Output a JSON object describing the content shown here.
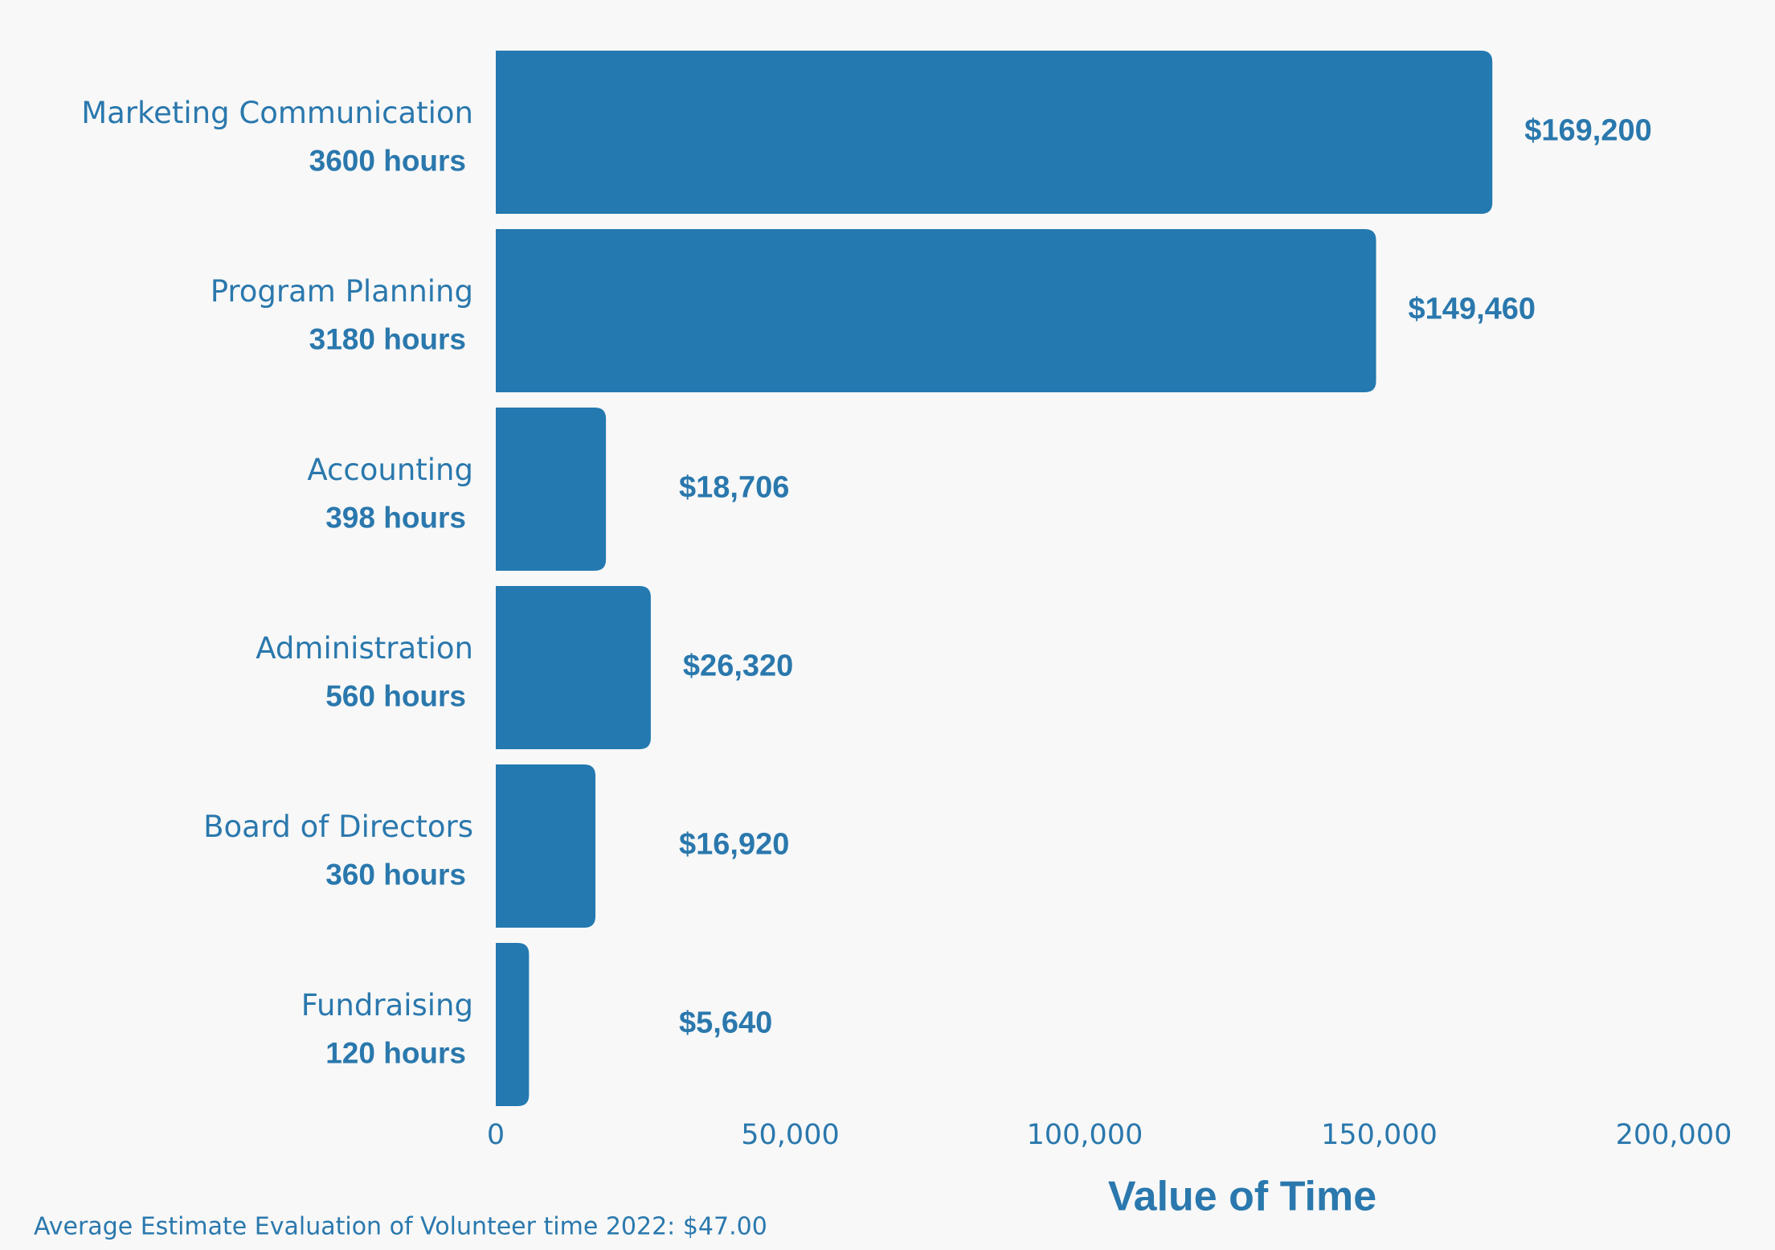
{
  "chart_data": {
    "type": "bar",
    "orientation": "horizontal",
    "categories": [
      "Marketing Communication",
      "Program Planning",
      "Accounting",
      "Administration",
      "Board of Directors",
      "Fundraising"
    ],
    "category_sublabels": [
      "3600 hours",
      "3180 hours",
      "398 hours",
      "560 hours",
      "360 hours",
      "120 hours"
    ],
    "values": [
      169200,
      149460,
      18706,
      26320,
      16920,
      5640
    ],
    "value_labels": [
      "$169,200",
      "$149,460",
      "$18,706",
      "$26,320",
      "$16,920",
      "$5,640"
    ],
    "color": "#2379b0",
    "xlim": [
      0,
      200000
    ],
    "xticks": [
      0,
      {
        "value": 50000,
        "label": "50,000"
      },
      {
        "value": 100000,
        "label": "100,000"
      },
      {
        "value": 150000,
        "label": "150,000"
      },
      {
        "value": 200000,
        "label": "200,000"
      }
    ],
    "xlabel": "Value of Time",
    "footnote": "Average Estimate Evaluation of Volunteer time 2022: $47.00",
    "grid": false
  }
}
